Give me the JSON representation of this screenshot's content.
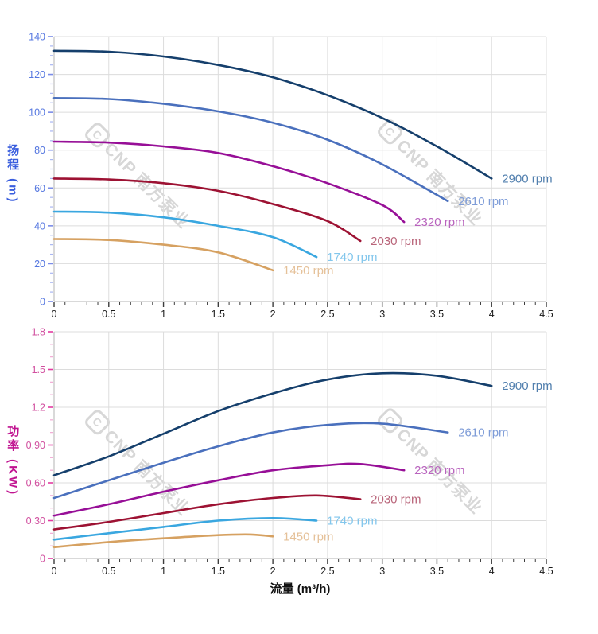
{
  "watermark": {
    "logo_letter": "C",
    "text": "CNP 南方泵业"
  },
  "shared_colors": {
    "grid": "#dcdcdc",
    "axis_line": "#b3b3b3",
    "x_tick": "#3c3c3c",
    "x_tick_label": "#1a1a1a",
    "x_axis_title": "#111111",
    "watermark": "#d7d7d7"
  },
  "chart_data": [
    {
      "type": "line",
      "id": "head-vs-flow",
      "title": "",
      "ylabel": "扬程 (m)",
      "xlabel": "",
      "xlim": [
        0,
        4.5
      ],
      "ylim": [
        0,
        140
      ],
      "grid": true,
      "legend_position": "curve-ends",
      "x_tick_values": [
        0,
        0.5,
        1,
        1.5,
        2,
        2.5,
        3,
        3.5,
        4,
        4.5
      ],
      "x_tick_labels": [
        "0",
        "0.5",
        "1",
        "1.5",
        "2",
        "2.5",
        "3",
        "3.5",
        "4",
        "4.5"
      ],
      "x_minor_step": 0.1,
      "y_tick_values": [
        0,
        20,
        40,
        60,
        80,
        100,
        120,
        140
      ],
      "y_tick_labels": [
        "0",
        "20",
        "40",
        "60",
        "80",
        "100",
        "120",
        "140"
      ],
      "y_minor_step": 5,
      "axis_theme": {
        "tick_label": "#5577e0",
        "tick_major": "#7a8ce8",
        "tick_minor": "#a9b6f2"
      },
      "series": [
        {
          "name": "2900 rpm",
          "color": "#153f6c",
          "label_color": "#517fae",
          "points": [
            [
              0,
              132.5
            ],
            [
              0.5,
              132
            ],
            [
              1,
              129.5
            ],
            [
              1.5,
              125
            ],
            [
              2,
              118.5
            ],
            [
              2.5,
              109
            ],
            [
              3,
              97
            ],
            [
              3.5,
              82
            ],
            [
              4,
              65
            ]
          ]
        },
        {
          "name": "2610 rpm",
          "color": "#4a70bd",
          "label_color": "#7f9dd8",
          "points": [
            [
              0,
              107.5
            ],
            [
              0.5,
              107
            ],
            [
              1,
              104.5
            ],
            [
              1.5,
              100.5
            ],
            [
              2,
              94.5
            ],
            [
              2.5,
              85.5
            ],
            [
              3,
              72.5
            ],
            [
              3.6,
              53
            ]
          ]
        },
        {
          "name": "2320 rpm",
          "color": "#970f97",
          "label_color": "#b964be",
          "points": [
            [
              0,
              84.5
            ],
            [
              0.5,
              84
            ],
            [
              1,
              82
            ],
            [
              1.5,
              78.5
            ],
            [
              2,
              71.5
            ],
            [
              2.5,
              62.5
            ],
            [
              3,
              51
            ],
            [
              3.2,
              42
            ]
          ]
        },
        {
          "name": "2030 rpm",
          "color": "#9d1233",
          "label_color": "#b9657a",
          "points": [
            [
              0,
              65
            ],
            [
              0.5,
              64.5
            ],
            [
              1,
              62.5
            ],
            [
              1.5,
              58.5
            ],
            [
              2,
              51.5
            ],
            [
              2.5,
              42.5
            ],
            [
              2.8,
              32
            ]
          ]
        },
        {
          "name": "1740 rpm",
          "color": "#3aa7e0",
          "label_color": "#82c6ec",
          "points": [
            [
              0,
              47.5
            ],
            [
              0.5,
              47
            ],
            [
              1,
              44.5
            ],
            [
              1.5,
              40
            ],
            [
              2,
              34
            ],
            [
              2.4,
              23.5
            ]
          ]
        },
        {
          "name": "1450 rpm",
          "color": "#d6a161",
          "label_color": "#e5c199",
          "points": [
            [
              0,
              33
            ],
            [
              0.5,
              32.5
            ],
            [
              1,
              30
            ],
            [
              1.5,
              26
            ],
            [
              2,
              16.5
            ]
          ]
        }
      ]
    },
    {
      "type": "line",
      "id": "power-vs-flow",
      "title": "",
      "ylabel": "功率 (KW)",
      "xlabel": "流量 (m³/h)",
      "xlim": [
        0,
        4.5
      ],
      "ylim": [
        0,
        1.8
      ],
      "grid": true,
      "legend_position": "curve-ends",
      "x_tick_values": [
        0,
        0.5,
        1,
        1.5,
        2,
        2.5,
        3,
        3.5,
        4,
        4.5
      ],
      "x_tick_labels": [
        "0",
        "0.5",
        "1",
        "1.5",
        "2",
        "2.5",
        "3",
        "3.5",
        "4",
        "4.5"
      ],
      "x_minor_step": 0.1,
      "y_tick_values": [
        0,
        0.3,
        0.6,
        0.9,
        1.2,
        1.5,
        1.8
      ],
      "y_tick_labels": [
        "0",
        "0.30",
        "0.60",
        "0.90",
        "1.2",
        "1.5",
        "1.8"
      ],
      "y_minor_step": 0.1,
      "axis_theme": {
        "tick_label": "#d1509f",
        "tick_major": "#e23ba1",
        "tick_minor": "#f2a8d3"
      },
      "series": [
        {
          "name": "2900 rpm",
          "color": "#153f6c",
          "label_color": "#517fae",
          "points": [
            [
              0,
              0.66
            ],
            [
              0.5,
              0.81
            ],
            [
              1,
              0.99
            ],
            [
              1.5,
              1.17
            ],
            [
              2,
              1.31
            ],
            [
              2.5,
              1.42
            ],
            [
              3,
              1.47
            ],
            [
              3.5,
              1.45
            ],
            [
              4,
              1.37
            ]
          ]
        },
        {
          "name": "2610 rpm",
          "color": "#4a70bd",
          "label_color": "#7f9dd8",
          "points": [
            [
              0,
              0.48
            ],
            [
              0.5,
              0.62
            ],
            [
              1,
              0.76
            ],
            [
              1.5,
              0.89
            ],
            [
              2,
              1.0
            ],
            [
              2.5,
              1.06
            ],
            [
              3,
              1.07
            ],
            [
              3.6,
              1.0
            ]
          ]
        },
        {
          "name": "2320 rpm",
          "color": "#970f97",
          "label_color": "#b964be",
          "points": [
            [
              0,
              0.34
            ],
            [
              0.5,
              0.43
            ],
            [
              1,
              0.53
            ],
            [
              1.5,
              0.62
            ],
            [
              2,
              0.7
            ],
            [
              2.5,
              0.74
            ],
            [
              2.8,
              0.75
            ],
            [
              3.2,
              0.7
            ]
          ]
        },
        {
          "name": "2030 rpm",
          "color": "#9d1233",
          "label_color": "#b9657a",
          "points": [
            [
              0,
              0.23
            ],
            [
              0.5,
              0.29
            ],
            [
              1,
              0.36
            ],
            [
              1.5,
              0.43
            ],
            [
              2,
              0.48
            ],
            [
              2.4,
              0.5
            ],
            [
              2.8,
              0.47
            ]
          ]
        },
        {
          "name": "1740 rpm",
          "color": "#3aa7e0",
          "label_color": "#82c6ec",
          "points": [
            [
              0,
              0.15
            ],
            [
              0.5,
              0.2
            ],
            [
              1,
              0.25
            ],
            [
              1.5,
              0.3
            ],
            [
              2,
              0.32
            ],
            [
              2.4,
              0.3
            ]
          ]
        },
        {
          "name": "1450 rpm",
          "color": "#d6a161",
          "label_color": "#e5c199",
          "points": [
            [
              0,
              0.09
            ],
            [
              0.5,
              0.13
            ],
            [
              1,
              0.16
            ],
            [
              1.5,
              0.185
            ],
            [
              1.8,
              0.19
            ],
            [
              2,
              0.175
            ]
          ]
        }
      ]
    }
  ]
}
